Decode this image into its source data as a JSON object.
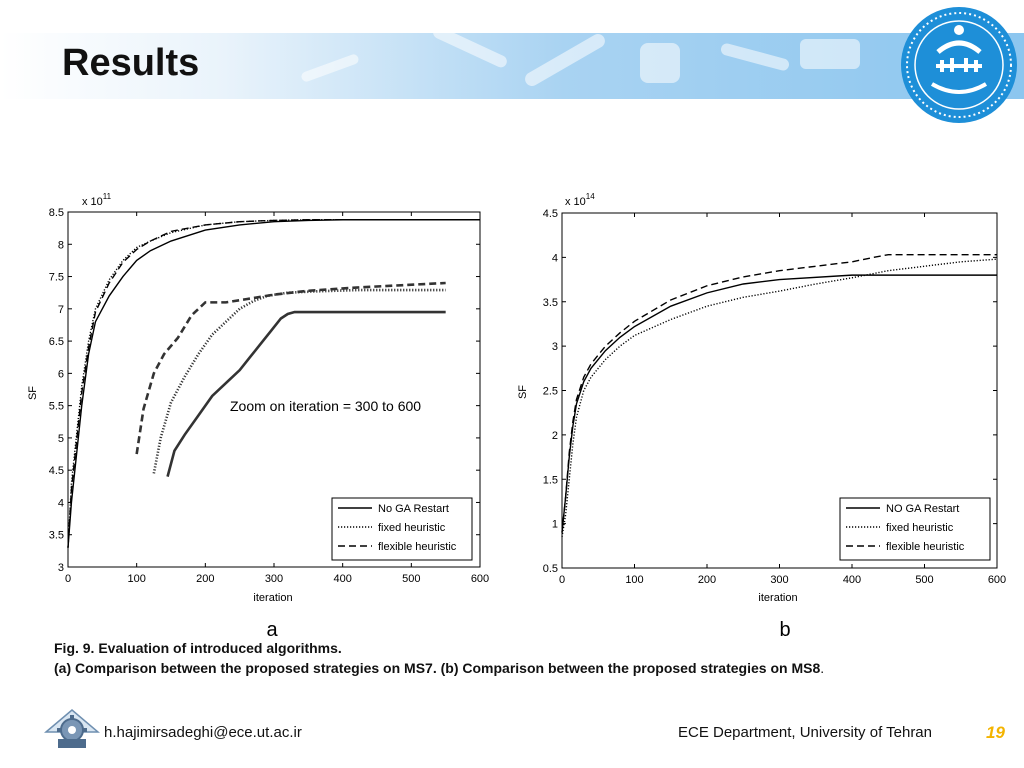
{
  "slide": {
    "title": "Results",
    "caption_line1": "Fig. 9.  Evaluation of introduced algorithms.",
    "caption_line2": "(a) Comparison between the proposed strategies on MS7.  (b) Comparison between the proposed strategies on MS8",
    "caption_line2_end": ".",
    "footer_email": "h.hajimirsadeghi@ece.ut.ac.ir",
    "footer_dept": "ECE Department, University of Tehran",
    "slide_number": "19",
    "panel_a_label": "a",
    "panel_b_label": "b",
    "annotation": "Zoom on iteration = 300 to 600"
  },
  "colors": {
    "banner": "#8cc6ef",
    "slide_number": "#f4b400",
    "logo": "#1e8fd8"
  },
  "chart_data": [
    {
      "type": "line",
      "panel": "a",
      "exponent": "x 10",
      "exponent_power": "11",
      "xlabel": "iteration",
      "ylabel": "SF",
      "xlim": [
        0,
        600
      ],
      "ylim": [
        3,
        8.5
      ],
      "xticks": [
        0,
        100,
        200,
        300,
        400,
        500,
        600
      ],
      "yticks": [
        3,
        3.5,
        4,
        4.5,
        5,
        5.5,
        6,
        6.5,
        7,
        7.5,
        8,
        8.5
      ],
      "legend_position": "bottom-right",
      "series": [
        {
          "name": "No GA Restart",
          "dash": "solid",
          "x": [
            0,
            5,
            10,
            20,
            30,
            40,
            60,
            80,
            100,
            120,
            150,
            200,
            250,
            300,
            350,
            400,
            450,
            500,
            600
          ],
          "y": [
            3.3,
            4.0,
            4.5,
            5.5,
            6.3,
            6.8,
            7.2,
            7.5,
            7.75,
            7.9,
            8.05,
            8.22,
            8.3,
            8.35,
            8.37,
            8.38,
            8.38,
            8.38,
            8.38
          ]
        },
        {
          "name": "fixed heuristic",
          "dash": "dotted",
          "x": [
            0,
            5,
            10,
            20,
            30,
            40,
            60,
            80,
            100,
            120,
            150,
            200,
            250,
            300,
            350,
            400,
            450,
            500,
            600
          ],
          "y": [
            3.3,
            4.3,
            4.8,
            5.8,
            6.5,
            7.0,
            7.45,
            7.75,
            7.95,
            8.05,
            8.18,
            8.3,
            8.35,
            8.37,
            8.38,
            8.38,
            8.38,
            8.38,
            8.38
          ]
        },
        {
          "name": "flexible heuristic",
          "dash": "dashed",
          "x": [
            0,
            5,
            10,
            20,
            30,
            40,
            60,
            80,
            100,
            120,
            150,
            200,
            250,
            300,
            350,
            400,
            450,
            500,
            600
          ],
          "y": [
            3.3,
            4.2,
            4.7,
            5.7,
            6.4,
            6.95,
            7.4,
            7.72,
            7.92,
            8.05,
            8.2,
            8.3,
            8.35,
            8.37,
            8.38,
            8.38,
            8.38,
            8.38,
            8.38
          ]
        }
      ],
      "inset_series": [
        {
          "name": "No GA Restart",
          "dash": "solid",
          "x": [
            145,
            155,
            170,
            190,
            210,
            230,
            250,
            265,
            280,
            295,
            310,
            320,
            330,
            350,
            450,
            550
          ],
          "y": [
            4.4,
            4.8,
            5.05,
            5.35,
            5.65,
            5.85,
            6.05,
            6.25,
            6.45,
            6.65,
            6.85,
            6.92,
            6.95,
            6.95,
            6.95,
            6.95
          ]
        },
        {
          "name": "fixed heuristic",
          "dash": "dotted",
          "x": [
            125,
            135,
            150,
            170,
            190,
            210,
            230,
            250,
            270,
            290,
            320,
            360,
            420,
            550
          ],
          "y": [
            4.45,
            5.0,
            5.55,
            5.95,
            6.3,
            6.6,
            6.8,
            7.0,
            7.12,
            7.2,
            7.25,
            7.27,
            7.29,
            7.29
          ]
        },
        {
          "name": "flexible heuristic",
          "dash": "dashed",
          "x": [
            100,
            110,
            125,
            140,
            160,
            180,
            200,
            230,
            260,
            300,
            350,
            420,
            550
          ],
          "y": [
            4.75,
            5.45,
            6.0,
            6.3,
            6.55,
            6.9,
            7.1,
            7.1,
            7.15,
            7.22,
            7.28,
            7.33,
            7.4
          ]
        }
      ]
    },
    {
      "type": "line",
      "panel": "b",
      "exponent": "x 10",
      "exponent_power": "14",
      "xlabel": "iteration",
      "ylabel": "SF",
      "xlim": [
        0,
        600
      ],
      "ylim": [
        0.5,
        4.5
      ],
      "xticks": [
        0,
        100,
        200,
        300,
        400,
        500,
        600
      ],
      "yticks": [
        0.5,
        1,
        1.5,
        2,
        2.5,
        3,
        3.5,
        4,
        4.5
      ],
      "legend_position": "bottom-right",
      "series": [
        {
          "name": "NO GA Restart",
          "dash": "solid",
          "x": [
            0,
            5,
            10,
            15,
            20,
            30,
            40,
            60,
            80,
            100,
            150,
            200,
            250,
            300,
            400,
            500,
            600
          ],
          "y": [
            0.9,
            1.3,
            1.75,
            2.1,
            2.35,
            2.6,
            2.75,
            2.95,
            3.1,
            3.22,
            3.45,
            3.6,
            3.7,
            3.75,
            3.8,
            3.8,
            3.8
          ]
        },
        {
          "name": "fixed heuristic",
          "dash": "dotted",
          "x": [
            0,
            5,
            10,
            15,
            20,
            30,
            40,
            60,
            80,
            100,
            150,
            200,
            250,
            300,
            350,
            400,
            450,
            500,
            550,
            600
          ],
          "y": [
            0.85,
            1.1,
            1.5,
            1.9,
            2.2,
            2.5,
            2.65,
            2.85,
            3.0,
            3.12,
            3.3,
            3.45,
            3.55,
            3.62,
            3.7,
            3.77,
            3.85,
            3.9,
            3.95,
            3.98
          ]
        },
        {
          "name": "flexible heuristic",
          "dash": "dashed",
          "x": [
            0,
            5,
            10,
            15,
            20,
            30,
            40,
            60,
            80,
            100,
            150,
            200,
            250,
            300,
            350,
            400,
            430,
            450,
            600
          ],
          "y": [
            0.9,
            1.3,
            1.8,
            2.15,
            2.4,
            2.65,
            2.8,
            3.0,
            3.15,
            3.28,
            3.52,
            3.68,
            3.78,
            3.85,
            3.9,
            3.95,
            4.0,
            4.03,
            4.03
          ]
        }
      ]
    }
  ]
}
